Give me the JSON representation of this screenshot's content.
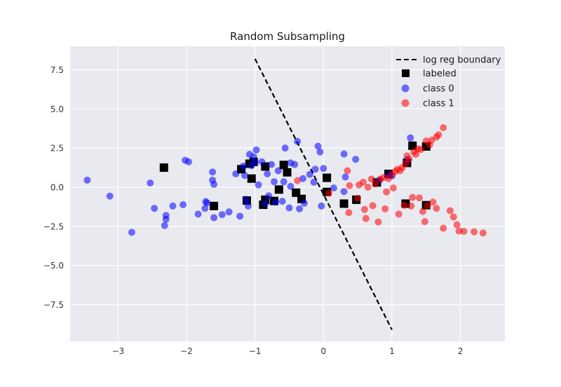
{
  "chart_data": {
    "type": "scatter",
    "title": "Random Subsampling",
    "xlabel": "",
    "ylabel": "",
    "xlim": [
      -3.7,
      2.65
    ],
    "ylim": [
      -9.85,
      9.0
    ],
    "x_ticks": [
      -3,
      -2,
      -1,
      0,
      1,
      2
    ],
    "x_tick_labels": [
      "−3",
      "−2",
      "−1",
      "0",
      "1",
      "2"
    ],
    "y_ticks": [
      -7.5,
      -5.0,
      -2.5,
      0.0,
      2.5,
      5.0,
      7.5
    ],
    "y_tick_labels": [
      "−7.5",
      "−5.0",
      "−2.5",
      "0.0",
      "2.5",
      "5.0",
      "7.5"
    ],
    "grid": true,
    "legend_position": "top-right",
    "colors": {
      "background": "#e9e9f0",
      "grid": "#ffffff",
      "class0": "#0000ff",
      "class1": "#ff0000",
      "labeled": "#000000",
      "boundary": "#000000"
    },
    "boundary": {
      "name": "log reg boundary",
      "x": [
        -1.0,
        1.0
      ],
      "y": [
        8.2,
        -9.1
      ]
    },
    "series": [
      {
        "name": "class 0",
        "marker": "circle",
        "points": [
          [
            -3.45,
            0.45
          ],
          [
            -3.12,
            -0.57
          ],
          [
            -2.8,
            -2.88
          ],
          [
            -2.53,
            0.27
          ],
          [
            -2.47,
            -1.35
          ],
          [
            -2.32,
            -2.45
          ],
          [
            -2.3,
            -2.05
          ],
          [
            -2.3,
            -1.8
          ],
          [
            -2.2,
            -1.2
          ],
          [
            -2.05,
            -1.12
          ],
          [
            -2.02,
            1.72
          ],
          [
            -1.97,
            1.62
          ],
          [
            -1.83,
            -1.72
          ],
          [
            -1.73,
            -1.35
          ],
          [
            -1.72,
            -0.92
          ],
          [
            -1.7,
            -1.0
          ],
          [
            -1.62,
            0.97
          ],
          [
            -1.62,
            0.45
          ],
          [
            -1.6,
            0.18
          ],
          [
            -1.6,
            -1.95
          ],
          [
            -1.48,
            -1.75
          ],
          [
            -1.38,
            -1.58
          ],
          [
            -1.28,
            0.85
          ],
          [
            -1.22,
            -1.85
          ],
          [
            -1.17,
            1.35
          ],
          [
            -1.15,
            0.75
          ],
          [
            -1.13,
            -0.78
          ],
          [
            -1.1,
            -1.2
          ],
          [
            -1.08,
            2.1
          ],
          [
            -1.05,
            1.38
          ],
          [
            -1.02,
            1.95
          ],
          [
            -1.0,
            1.62
          ],
          [
            -0.98,
            2.38
          ],
          [
            -0.95,
            0.15
          ],
          [
            -0.9,
            1.62
          ],
          [
            -0.85,
            -1.05
          ],
          [
            -0.82,
            0.85
          ],
          [
            -0.8,
            -0.55
          ],
          [
            -0.76,
            1.45
          ],
          [
            -0.72,
            0.35
          ],
          [
            -0.7,
            -0.95
          ],
          [
            -0.66,
            1.05
          ],
          [
            -0.6,
            -0.9
          ],
          [
            -0.58,
            0.35
          ],
          [
            -0.56,
            2.5
          ],
          [
            -0.48,
            1.55
          ],
          [
            -0.5,
            -1.32
          ],
          [
            -0.48,
            0.05
          ],
          [
            -0.42,
            1.45
          ],
          [
            -0.38,
            2.92
          ],
          [
            -0.35,
            -1.38
          ],
          [
            -0.3,
            0.55
          ],
          [
            -0.28,
            -1.02
          ],
          [
            -0.2,
            0.82
          ],
          [
            -0.14,
            0.32
          ],
          [
            -0.12,
            1.15
          ],
          [
            -0.08,
            2.62
          ],
          [
            -0.05,
            2.25
          ],
          [
            -0.03,
            -1.2
          ],
          [
            0.0,
            1.2
          ],
          [
            0.15,
            -0.05
          ],
          [
            0.3,
            2.12
          ],
          [
            0.32,
            0.65
          ],
          [
            0.47,
            1.78
          ],
          [
            0.3,
            -0.28
          ],
          [
            0.82,
            0.45
          ],
          [
            0.95,
            0.75
          ],
          [
            1.0,
            0.72
          ],
          [
            1.27,
            3.15
          ],
          [
            1.22,
            1.75
          ]
        ]
      },
      {
        "name": "class 1",
        "marker": "circle",
        "points": [
          [
            -0.38,
            0.42
          ],
          [
            0.08,
            -0.38
          ],
          [
            0.35,
            1.05
          ],
          [
            0.38,
            0.1
          ],
          [
            0.37,
            -1.62
          ],
          [
            0.5,
            -0.7
          ],
          [
            0.52,
            0.15
          ],
          [
            0.58,
            0.32
          ],
          [
            0.6,
            -1.42
          ],
          [
            0.62,
            -2.0
          ],
          [
            0.65,
            0.0
          ],
          [
            0.7,
            0.52
          ],
          [
            0.72,
            -1.18
          ],
          [
            0.76,
            0.2
          ],
          [
            0.8,
            -2.22
          ],
          [
            0.83,
            0.52
          ],
          [
            0.88,
            0.62
          ],
          [
            0.9,
            -1.38
          ],
          [
            0.92,
            -0.3
          ],
          [
            0.95,
            0.55
          ],
          [
            1.0,
            0.82
          ],
          [
            1.02,
            -0.05
          ],
          [
            1.05,
            1.0
          ],
          [
            1.08,
            1.15
          ],
          [
            1.1,
            -1.72
          ],
          [
            1.12,
            1.05
          ],
          [
            1.15,
            1.25
          ],
          [
            1.18,
            -1.15
          ],
          [
            1.2,
            1.5
          ],
          [
            1.22,
            2.0
          ],
          [
            1.25,
            1.8
          ],
          [
            1.28,
            -1.2
          ],
          [
            1.3,
            -0.65
          ],
          [
            1.32,
            2.25
          ],
          [
            1.35,
            2.1
          ],
          [
            1.38,
            2.45
          ],
          [
            1.4,
            -0.68
          ],
          [
            1.42,
            2.4
          ],
          [
            1.45,
            -1.55
          ],
          [
            1.48,
            -2.2
          ],
          [
            1.5,
            2.95
          ],
          [
            1.55,
            2.7
          ],
          [
            1.58,
            3.0
          ],
          [
            1.6,
            -0.95
          ],
          [
            1.65,
            3.2
          ],
          [
            1.68,
            3.35
          ],
          [
            1.65,
            -1.35
          ],
          [
            1.75,
            3.8
          ],
          [
            1.75,
            -2.62
          ],
          [
            1.85,
            -1.5
          ],
          [
            1.9,
            -1.9
          ],
          [
            1.95,
            -2.4
          ],
          [
            1.98,
            -2.8
          ],
          [
            2.05,
            -2.82
          ],
          [
            2.2,
            -2.85
          ],
          [
            2.33,
            -2.92
          ],
          [
            1.52,
            -1.18
          ]
        ]
      },
      {
        "name": "labeled",
        "marker": "square",
        "points": [
          [
            -2.33,
            1.25
          ],
          [
            -1.6,
            -1.2
          ],
          [
            -1.2,
            1.15
          ],
          [
            -1.12,
            -0.85
          ],
          [
            -1.08,
            1.5
          ],
          [
            -1.05,
            0.55
          ],
          [
            -1.02,
            1.62
          ],
          [
            -0.88,
            -1.12
          ],
          [
            -0.85,
            -0.8
          ],
          [
            -0.85,
            1.32
          ],
          [
            -0.72,
            -0.88
          ],
          [
            -0.65,
            -0.15
          ],
          [
            -0.58,
            1.42
          ],
          [
            -0.53,
            0.95
          ],
          [
            -0.4,
            -0.35
          ],
          [
            -0.32,
            -0.75
          ],
          [
            0.05,
            0.6
          ],
          [
            0.05,
            -0.3
          ],
          [
            0.3,
            -1.05
          ],
          [
            0.48,
            -0.8
          ],
          [
            0.78,
            0.3
          ],
          [
            0.95,
            0.85
          ],
          [
            1.2,
            -1.05
          ],
          [
            1.22,
            1.55
          ],
          [
            1.3,
            2.65
          ],
          [
            1.5,
            2.6
          ],
          [
            1.5,
            -1.15
          ]
        ]
      }
    ]
  }
}
